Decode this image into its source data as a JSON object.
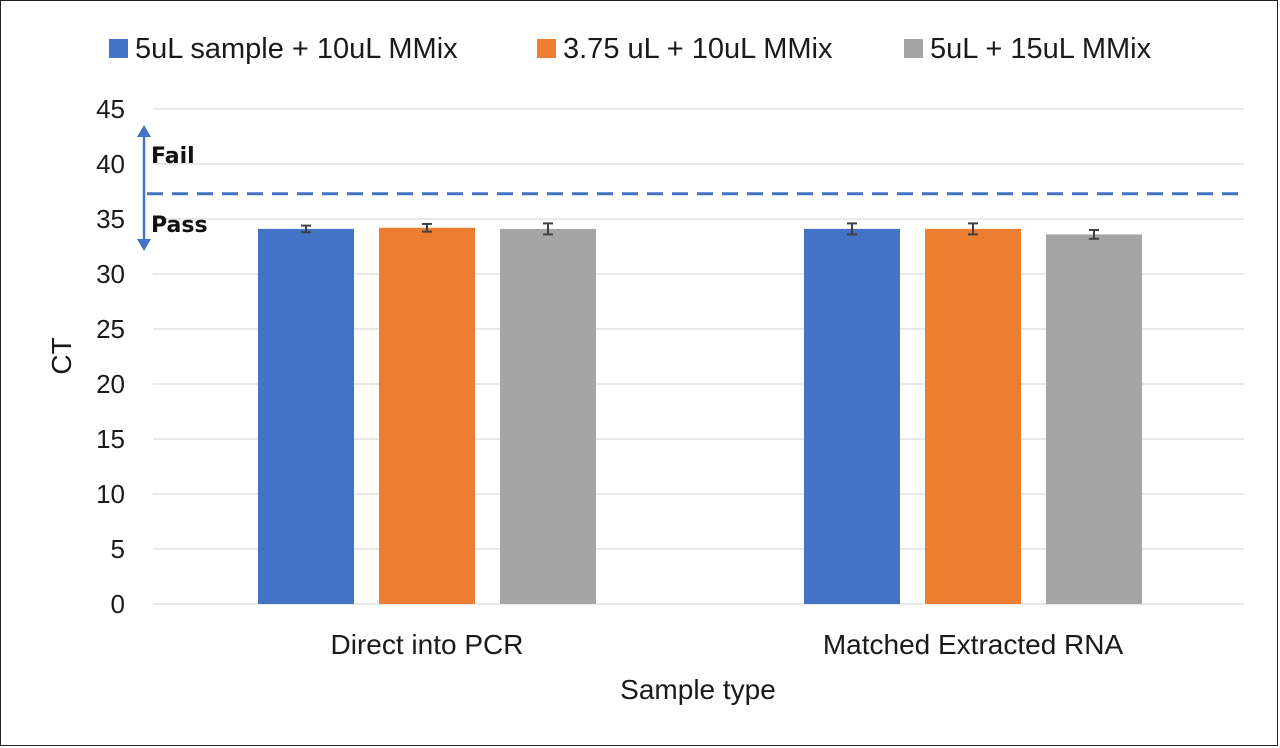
{
  "chart_data": {
    "type": "bar",
    "xlabel": "Sample type",
    "ylabel": "CT",
    "ylim": [
      0,
      45
    ],
    "yticks": [
      0,
      5,
      10,
      15,
      20,
      25,
      30,
      35,
      40,
      45
    ],
    "categories": [
      "Direct into PCR",
      "Matched Extracted RNA"
    ],
    "series": [
      {
        "name": "5uL sample + 10uL MMix",
        "color": "#4472C4",
        "values": [
          34.1,
          34.1
        ],
        "errors": [
          0.3,
          0.5
        ]
      },
      {
        "name": "3.75 uL + 10uL MMix",
        "color": "#ED7D31",
        "values": [
          34.2,
          34.1
        ],
        "errors": [
          0.35,
          0.5
        ]
      },
      {
        "name": "5uL + 15uL MMix",
        "color": "#A5A5A5",
        "values": [
          34.1,
          33.6
        ],
        "errors": [
          0.5,
          0.4
        ]
      }
    ],
    "threshold": {
      "value": 37.3,
      "style": "dashed",
      "color": "#4472C4"
    },
    "annotations": {
      "above": "Fail",
      "below": "Pass"
    },
    "legend_position": "top",
    "grid": true
  }
}
